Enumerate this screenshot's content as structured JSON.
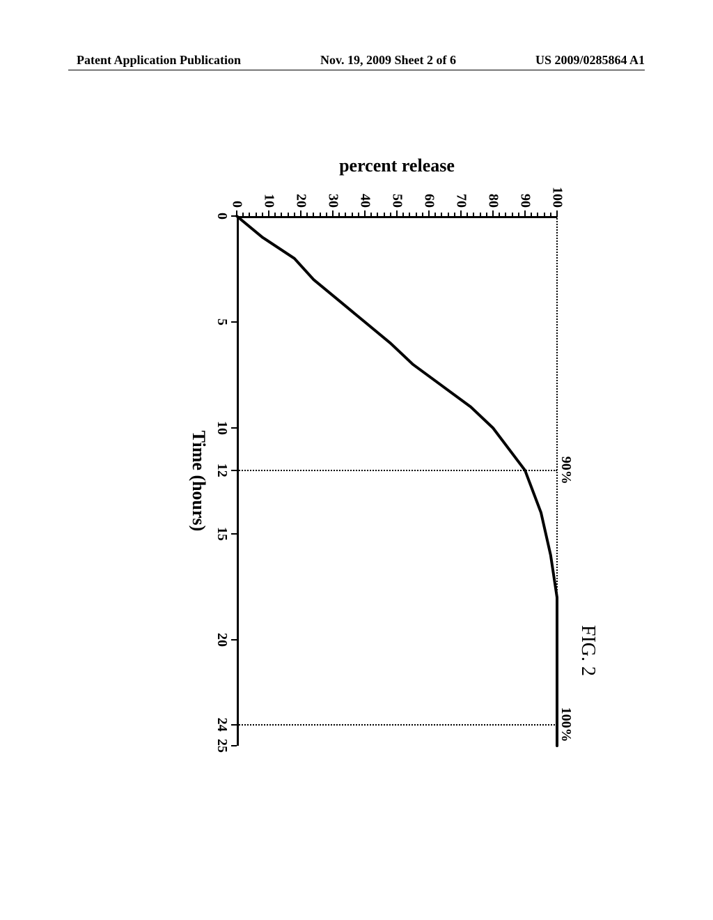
{
  "header": {
    "left": "Patent Application Publication",
    "center": "Nov. 19, 2009  Sheet 2 of 6",
    "right": "US 2009/0285864 A1"
  },
  "figure": {
    "title": "FIG. 2",
    "chart": {
      "type": "line",
      "xlabel": "Time (hours)",
      "ylabel": "percent release",
      "xlim": [
        0,
        25
      ],
      "ylim": [
        0,
        100
      ],
      "xticks": [
        0,
        5,
        10,
        12,
        15,
        20,
        24,
        25
      ],
      "xtick_labels": [
        "0",
        "5",
        "10",
        "12",
        "15",
        "20",
        "24",
        "25"
      ],
      "yticks": [
        0,
        10,
        20,
        30,
        40,
        50,
        60,
        70,
        80,
        90,
        100
      ],
      "ytick_labels": [
        "0",
        "10",
        "20",
        "30",
        "40",
        "50",
        "60",
        "70",
        "80",
        "90",
        "100"
      ],
      "line_color": "#000000",
      "line_width": 4,
      "background_color": "#ffffff",
      "axis_color": "#000000",
      "tick_fontsize": 20,
      "label_fontsize": 26,
      "title_fontsize": 28,
      "reference_lines": [
        {
          "orientation": "vertical",
          "value": 12,
          "style": "dotted",
          "color": "#000000",
          "width": 2,
          "label": "90%",
          "label_side": "top"
        },
        {
          "orientation": "vertical",
          "value": 24,
          "style": "dotted",
          "color": "#000000",
          "width": 2,
          "label": "100%",
          "label_side": "top"
        }
      ],
      "data_points": [
        {
          "x": 0,
          "y": 0
        },
        {
          "x": 1,
          "y": 8
        },
        {
          "x": 2,
          "y": 18
        },
        {
          "x": 3,
          "y": 24
        },
        {
          "x": 4,
          "y": 32
        },
        {
          "x": 5,
          "y": 40
        },
        {
          "x": 6,
          "y": 48
        },
        {
          "x": 7,
          "y": 55
        },
        {
          "x": 8,
          "y": 64
        },
        {
          "x": 9,
          "y": 73
        },
        {
          "x": 10,
          "y": 80
        },
        {
          "x": 12,
          "y": 90
        },
        {
          "x": 14,
          "y": 95
        },
        {
          "x": 16,
          "y": 98
        },
        {
          "x": 18,
          "y": 100
        },
        {
          "x": 20,
          "y": 100
        },
        {
          "x": 24,
          "y": 100
        },
        {
          "x": 25,
          "y": 100
        }
      ]
    }
  }
}
